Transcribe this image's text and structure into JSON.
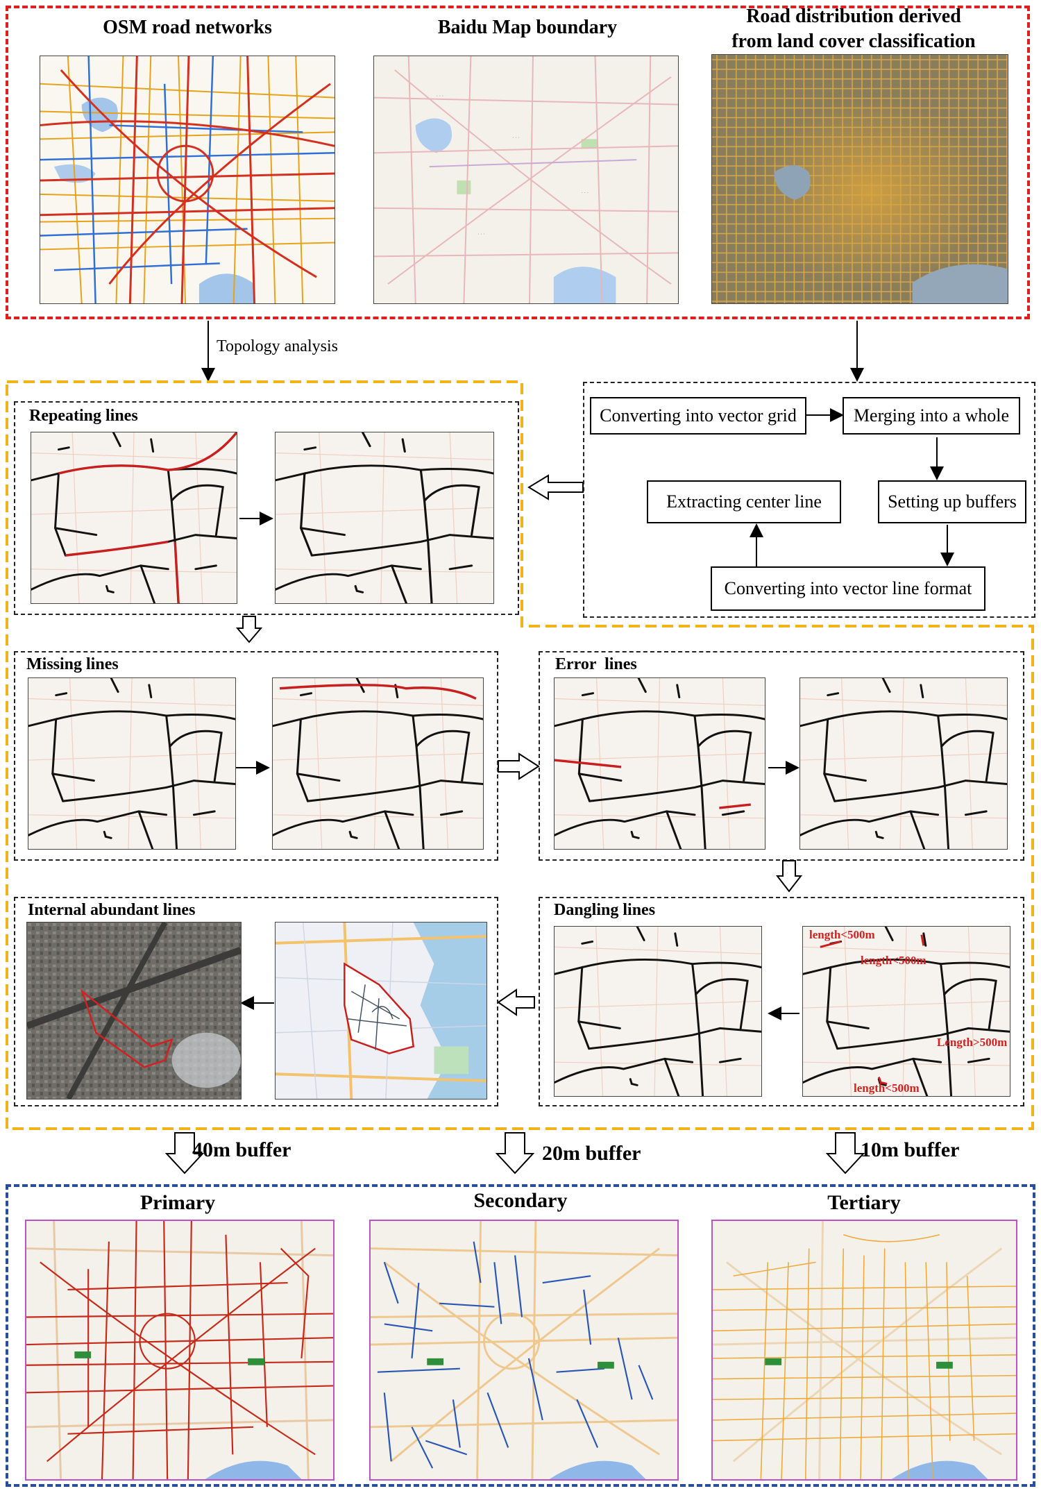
{
  "source_headers": {
    "osm": "OSM road networks",
    "baidu": "Baidu Map boundary",
    "landcover_line1": "Road distribution derived",
    "landcover_line2": "from land cover classification"
  },
  "topology_label": "Topology analysis",
  "process_boxes": {
    "convert_grid": "Converting into vector grid",
    "merge": "Merging into a whole",
    "buffers": "Setting up buffers",
    "vector_line": "Converting into vector line format",
    "center_line": "Extracting center line"
  },
  "panels": {
    "repeating": "Repeating lines",
    "missing": "Missing lines",
    "error": "Error  lines",
    "internal": "Internal abundant lines",
    "dangling": "Dangling lines"
  },
  "dangling_labels": {
    "a": "length<500m",
    "b": "length<500m",
    "c": "Length>500m",
    "d": "length<500m"
  },
  "buffers": {
    "primary_buffer": "40m buffer",
    "secondary_buffer": "20m buffer",
    "tertiary_buffer": "10m buffer"
  },
  "tiers": {
    "primary": "Primary",
    "secondary": "Secondary",
    "tertiary": "Tertiary"
  },
  "colors": {
    "red_border": "#e01e1e",
    "orange_border": "#f2b21b",
    "blue_border": "#2a4f9a",
    "highlight_red": "#c81e1e",
    "tier_frame": "#c14fc6"
  }
}
